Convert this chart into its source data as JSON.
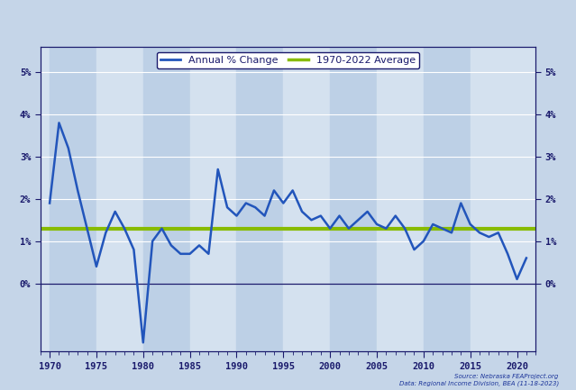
{
  "legend_line1": "Annual % Change",
  "legend_line2": "1970-2022 Average",
  "line_color": "#2255BB",
  "avg_color": "#88BB00",
  "background_color": "#C5D5E8",
  "plot_bg_color": "#D4E1EF",
  "band_color": "#BDD0E6",
  "xlim": [
    1969,
    2022
  ],
  "ylim": [
    -0.016,
    0.056
  ],
  "yticks": [
    0.0,
    0.01,
    0.02,
    0.03,
    0.04,
    0.05
  ],
  "ytick_labels": [
    "0%",
    "1%",
    "2%",
    "3%",
    "4%",
    "5%"
  ],
  "xticks": [
    1970,
    1975,
    1980,
    1985,
    1990,
    1995,
    2000,
    2005,
    2010,
    2015,
    2020
  ],
  "average_value": 0.013,
  "source_text": "Source: Nebraska FEAProject.org\nData: Regional Income Division, BEA (11-18-2023)",
  "years": [
    1970,
    1971,
    1972,
    1973,
    1974,
    1975,
    1976,
    1977,
    1978,
    1979,
    1980,
    1981,
    1982,
    1983,
    1984,
    1985,
    1986,
    1987,
    1988,
    1989,
    1990,
    1991,
    1992,
    1993,
    1994,
    1995,
    1996,
    1997,
    1998,
    1999,
    2000,
    2001,
    2002,
    2003,
    2004,
    2005,
    2006,
    2007,
    2008,
    2009,
    2010,
    2011,
    2012,
    2013,
    2014,
    2015,
    2016,
    2017,
    2018,
    2019,
    2020,
    2021
  ],
  "values": [
    0.019,
    0.038,
    0.032,
    0.022,
    0.013,
    0.004,
    0.012,
    0.017,
    0.013,
    0.008,
    -0.014,
    0.01,
    0.013,
    0.009,
    0.007,
    0.007,
    0.009,
    0.007,
    0.027,
    0.018,
    0.016,
    0.019,
    0.018,
    0.016,
    0.022,
    0.019,
    0.022,
    0.017,
    0.015,
    0.016,
    0.013,
    0.016,
    0.013,
    0.015,
    0.017,
    0.014,
    0.013,
    0.016,
    0.013,
    0.008,
    0.01,
    0.014,
    0.013,
    0.012,
    0.019,
    0.014,
    0.012,
    0.011,
    0.012,
    0.007,
    0.001,
    0.006
  ]
}
